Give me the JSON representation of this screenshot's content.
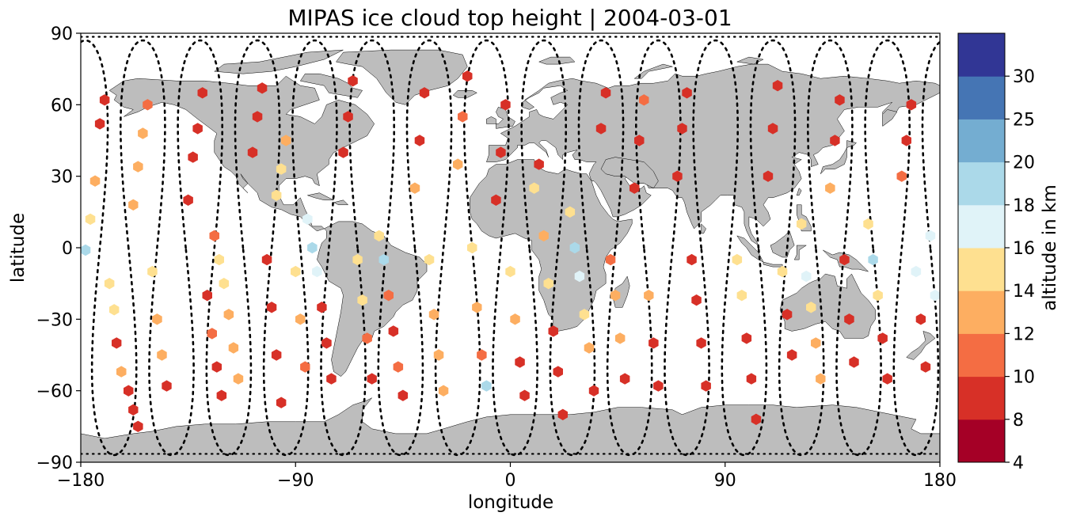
{
  "title": "MIPAS ice cloud top height | 2004-03-01",
  "x_axis": {
    "label": "longitude",
    "range": [
      -180,
      180
    ],
    "ticks": [
      "−180",
      "−90",
      "0",
      "90",
      "180"
    ],
    "tick_values": [
      -180,
      -90,
      0,
      90,
      180
    ]
  },
  "y_axis": {
    "label": "latitude",
    "range": [
      -90,
      90
    ],
    "ticks": [
      "90",
      "60",
      "30",
      "0",
      "−30",
      "−60",
      "−90"
    ],
    "tick_values": [
      90,
      60,
      30,
      0,
      -30,
      -60,
      -90
    ]
  },
  "colorbar": {
    "label": "altitude in km",
    "bounds": [
      4,
      8,
      10,
      12,
      14,
      16,
      18,
      20,
      25,
      30
    ],
    "tick_labels": [
      "4",
      "8",
      "10",
      "12",
      "14",
      "16",
      "18",
      "20",
      "25",
      "30"
    ],
    "colors": [
      "#a50026",
      "#d73027",
      "#f46d43",
      "#fdae61",
      "#fee090",
      "#e0f3f8",
      "#abd9e9",
      "#74add1",
      "#4575b4",
      "#313695"
    ]
  },
  "map": {
    "land_color": "#bdbdbd",
    "coastline_color": "#000000",
    "track_color": "#000000"
  },
  "orbit_tracks": {
    "count": 15,
    "first_ascending_equator_lon": -172,
    "longitude_spacing": 24,
    "inclination_turn_lat": 87
  },
  "chart_data": {
    "type": "scatter",
    "projection": "plate-carree",
    "marker": "hexagon",
    "x_name": "longitude",
    "y_name": "latitude",
    "value_name": "altitude in km",
    "points": [
      [
        -178,
        -1,
        18
      ],
      [
        -176,
        12,
        14
      ],
      [
        -174,
        28,
        12
      ],
      [
        -172,
        52,
        8
      ],
      [
        -170,
        62,
        8
      ],
      [
        -168,
        -15,
        14
      ],
      [
        -166,
        -26,
        14
      ],
      [
        -165,
        -40,
        8
      ],
      [
        -163,
        -52,
        12
      ],
      [
        -160,
        -60,
        8
      ],
      [
        -158,
        -68,
        8
      ],
      [
        -156,
        -75,
        8
      ],
      [
        -158,
        18,
        12
      ],
      [
        -156,
        34,
        12
      ],
      [
        -154,
        48,
        12
      ],
      [
        -152,
        60,
        10
      ],
      [
        -150,
        -10,
        14
      ],
      [
        -148,
        -30,
        12
      ],
      [
        -146,
        -45,
        12
      ],
      [
        -144,
        -58,
        8
      ],
      [
        -135,
        20,
        8
      ],
      [
        -133,
        38,
        8
      ],
      [
        -131,
        50,
        8
      ],
      [
        -129,
        65,
        8
      ],
      [
        -127,
        -20,
        8
      ],
      [
        -125,
        -36,
        10
      ],
      [
        -123,
        -50,
        8
      ],
      [
        -121,
        -62,
        8
      ],
      [
        -124,
        5,
        10
      ],
      [
        -122,
        -5,
        14
      ],
      [
        -120,
        -15,
        14
      ],
      [
        -118,
        -28,
        12
      ],
      [
        -116,
        -42,
        12
      ],
      [
        -114,
        -55,
        12
      ],
      [
        -108,
        40,
        8
      ],
      [
        -106,
        55,
        8
      ],
      [
        -104,
        67,
        8
      ],
      [
        -102,
        -5,
        8
      ],
      [
        -100,
        -25,
        8
      ],
      [
        -98,
        -45,
        8
      ],
      [
        -96,
        -65,
        8
      ],
      [
        -98,
        22,
        14
      ],
      [
        -96,
        33,
        14
      ],
      [
        -94,
        45,
        12
      ],
      [
        -90,
        -10,
        14
      ],
      [
        -88,
        -30,
        12
      ],
      [
        -86,
        -50,
        10
      ],
      [
        -85,
        12,
        17
      ],
      [
        -83,
        0,
        18
      ],
      [
        -81,
        -10,
        16
      ],
      [
        -79,
        -25,
        8
      ],
      [
        -77,
        -40,
        8
      ],
      [
        -75,
        -55,
        8
      ],
      [
        -70,
        40,
        8
      ],
      [
        -68,
        55,
        8
      ],
      [
        -66,
        70,
        8
      ],
      [
        -64,
        -5,
        14
      ],
      [
        -62,
        -22,
        14
      ],
      [
        -60,
        -38,
        10
      ],
      [
        -58,
        -55,
        8
      ],
      [
        -55,
        5,
        14
      ],
      [
        -53,
        -5,
        18
      ],
      [
        -51,
        -20,
        10
      ],
      [
        -49,
        -35,
        8
      ],
      [
        -47,
        -50,
        10
      ],
      [
        -45,
        -62,
        8
      ],
      [
        -40,
        25,
        12
      ],
      [
        -38,
        45,
        8
      ],
      [
        -36,
        65,
        8
      ],
      [
        -34,
        -5,
        14
      ],
      [
        -32,
        -28,
        12
      ],
      [
        -30,
        -45,
        12
      ],
      [
        -28,
        -60,
        12
      ],
      [
        -22,
        35,
        12
      ],
      [
        -20,
        55,
        10
      ],
      [
        -18,
        72,
        8
      ],
      [
        -16,
        0,
        14
      ],
      [
        -14,
        -25,
        12
      ],
      [
        -12,
        -45,
        10
      ],
      [
        -10,
        -58,
        18
      ],
      [
        -6,
        20,
        8
      ],
      [
        -4,
        40,
        8
      ],
      [
        -2,
        60,
        8
      ],
      [
        0,
        -10,
        14
      ],
      [
        2,
        -30,
        12
      ],
      [
        4,
        -48,
        8
      ],
      [
        6,
        -62,
        8
      ],
      [
        10,
        25,
        14
      ],
      [
        12,
        35,
        8
      ],
      [
        14,
        5,
        12
      ],
      [
        16,
        -15,
        14
      ],
      [
        18,
        -35,
        8
      ],
      [
        20,
        -52,
        8
      ],
      [
        22,
        -70,
        8
      ],
      [
        25,
        15,
        14
      ],
      [
        27,
        0,
        18
      ],
      [
        29,
        -12,
        16
      ],
      [
        31,
        -28,
        14
      ],
      [
        33,
        -42,
        12
      ],
      [
        35,
        -60,
        8
      ],
      [
        38,
        50,
        8
      ],
      [
        40,
        65,
        8
      ],
      [
        42,
        -5,
        10
      ],
      [
        44,
        -20,
        12
      ],
      [
        46,
        -38,
        12
      ],
      [
        48,
        -55,
        8
      ],
      [
        52,
        25,
        8
      ],
      [
        54,
        45,
        8
      ],
      [
        56,
        62,
        10
      ],
      [
        58,
        -20,
        12
      ],
      [
        60,
        -40,
        8
      ],
      [
        62,
        -58,
        8
      ],
      [
        70,
        30,
        8
      ],
      [
        72,
        50,
        8
      ],
      [
        74,
        65,
        8
      ],
      [
        76,
        -5,
        8
      ],
      [
        78,
        -22,
        8
      ],
      [
        80,
        -40,
        8
      ],
      [
        82,
        -58,
        8
      ],
      [
        95,
        -5,
        14
      ],
      [
        97,
        -20,
        14
      ],
      [
        99,
        -38,
        8
      ],
      [
        101,
        -55,
        8
      ],
      [
        103,
        -72,
        8
      ],
      [
        108,
        30,
        8
      ],
      [
        110,
        50,
        8
      ],
      [
        112,
        68,
        8
      ],
      [
        114,
        -10,
        14
      ],
      [
        116,
        -28,
        8
      ],
      [
        118,
        -45,
        8
      ],
      [
        122,
        10,
        14
      ],
      [
        124,
        -12,
        17
      ],
      [
        126,
        -25,
        14
      ],
      [
        128,
        -40,
        12
      ],
      [
        130,
        -55,
        12
      ],
      [
        134,
        25,
        12
      ],
      [
        136,
        45,
        8
      ],
      [
        138,
        62,
        8
      ],
      [
        140,
        -5,
        8
      ],
      [
        142,
        -30,
        8
      ],
      [
        144,
        -48,
        8
      ],
      [
        150,
        10,
        14
      ],
      [
        152,
        -5,
        18
      ],
      [
        154,
        -20,
        14
      ],
      [
        156,
        -38,
        8
      ],
      [
        158,
        -55,
        8
      ],
      [
        164,
        30,
        10
      ],
      [
        166,
        45,
        8
      ],
      [
        168,
        60,
        8
      ],
      [
        170,
        -10,
        16
      ],
      [
        172,
        -30,
        8
      ],
      [
        174,
        -50,
        8
      ],
      [
        176,
        5,
        16
      ],
      [
        178,
        -20,
        16
      ]
    ]
  }
}
